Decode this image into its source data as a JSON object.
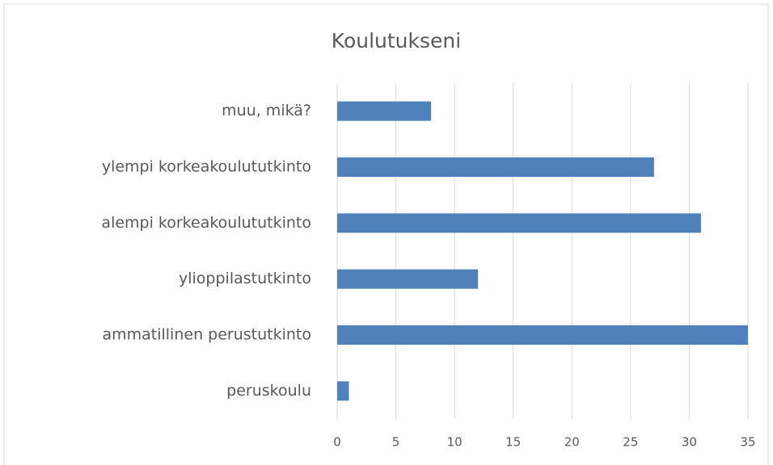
{
  "chart_data": {
    "type": "bar",
    "orientation": "horizontal",
    "title": "Koulutukseni",
    "categories": [
      "muu, mikä?",
      "ylempi korkeakoulututkinto",
      "alempi korkeakoulututkinto",
      "ylioppilastutkinto",
      "ammatillinen perustutkinto",
      "peruskoulu"
    ],
    "values": [
      8,
      27,
      31,
      12,
      35,
      1
    ],
    "color": "#4f81bd",
    "xlim": [
      0,
      35
    ],
    "xticks": [
      0,
      5,
      10,
      15,
      20,
      25,
      30,
      35
    ],
    "grid": true
  }
}
